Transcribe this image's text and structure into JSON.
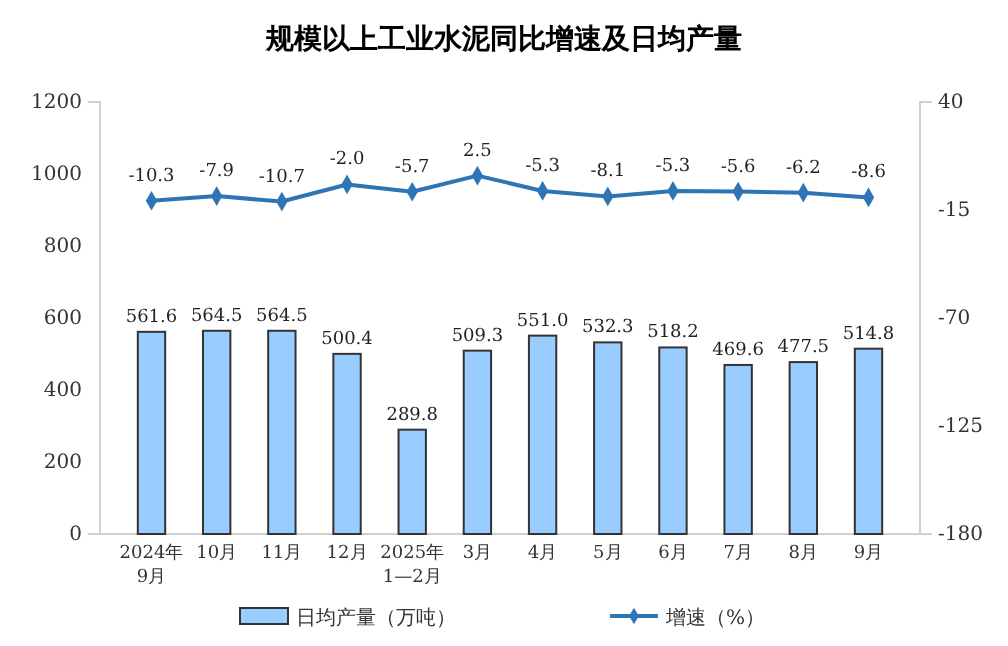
{
  "chart_data": {
    "type": "bar",
    "title": "规模以上工业水泥同比增速及日均产量",
    "categories": [
      "2024年\n9月",
      "10月",
      "11月",
      "12月",
      "2025年\n1—2月",
      "3月",
      "4月",
      "5月",
      "6月",
      "7月",
      "8月",
      "9月"
    ],
    "series": [
      {
        "name": "日均产量（万吨）",
        "color": "#99ccff",
        "values": [
          561.6,
          564.5,
          564.5,
          500.4,
          289.8,
          509.3,
          551.0,
          532.3,
          518.2,
          469.6,
          477.5,
          514.8
        ],
        "value_labels": [
          "561.6",
          "564.5",
          "564.5",
          "500.4",
          "289.8",
          "509.3",
          "551.0",
          "532.3",
          "518.2",
          "469.6",
          "477.5",
          "514.8"
        ]
      },
      {
        "name": "增速（%）",
        "type": "line",
        "axis": "y2",
        "color": "#2e75b6",
        "values": [
          -10.3,
          -7.9,
          -10.7,
          -2.0,
          -5.7,
          2.5,
          -5.3,
          -8.1,
          -5.3,
          -5.6,
          -6.2,
          -8.6
        ],
        "value_labels": [
          "-10.3",
          "-7.9",
          "-10.7",
          "-2.0",
          "-5.7",
          "2.5",
          "-5.3",
          "-8.1",
          "-5.3",
          "-5.6",
          "-6.2",
          "-8.6"
        ]
      }
    ],
    "ylim": [
      0,
      1200
    ],
    "yticks": [
      0,
      200,
      400,
      600,
      800,
      1000,
      1200
    ],
    "y2lim": [
      -180,
      40
    ],
    "y2ticks": [
      -180,
      -125,
      -70,
      -15,
      40
    ],
    "data_labels": true,
    "marker": "diamond",
    "grid": false,
    "legend": "bottom"
  }
}
